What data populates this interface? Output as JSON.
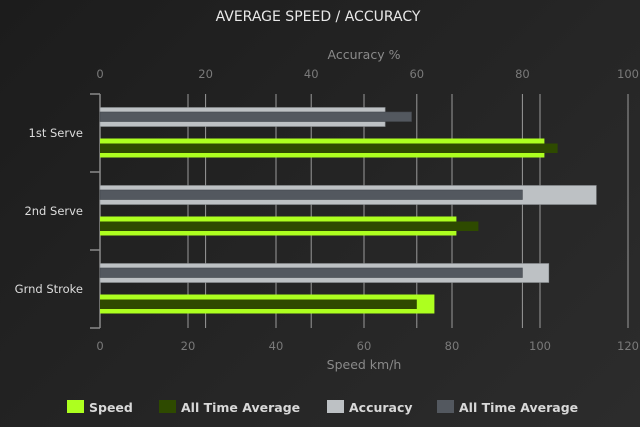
{
  "chart_data": {
    "type": "bar",
    "orientation": "horizontal",
    "title": "AVERAGE SPEED / ACCURACY",
    "categories": [
      "1st Serve",
      "2nd Serve",
      "Grnd Stroke"
    ],
    "x_axis_bottom": {
      "label": "Speed km/h",
      "range": [
        0,
        120
      ],
      "ticks": [
        0,
        20,
        40,
        60,
        80,
        100,
        120
      ]
    },
    "x_axis_top": {
      "label": "Accuracy %",
      "range": [
        0,
        100
      ],
      "ticks": [
        0,
        20,
        40,
        60,
        80,
        100
      ]
    },
    "grid": true,
    "legend_position": "bottom",
    "series": [
      {
        "name": "Speed",
        "axis": "bottom",
        "color": "#adff1f",
        "values": [
          101,
          81,
          76
        ]
      },
      {
        "name": "All Time Average",
        "axis": "bottom",
        "color": "#2e4a00",
        "values": [
          104,
          86,
          72
        ]
      },
      {
        "name": "Accuracy",
        "axis": "top",
        "color": "#bdc1c4",
        "values": [
          54,
          94,
          85
        ]
      },
      {
        "name": "All Time Average",
        "axis": "top",
        "color": "#53585f",
        "values": [
          59,
          80,
          80
        ]
      }
    ]
  }
}
